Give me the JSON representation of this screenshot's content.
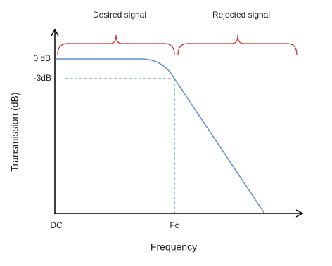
{
  "regions": {
    "desired": "Desired signal",
    "rejected": "Rejected signal"
  },
  "y_axis": {
    "title": "Transmission (dB)",
    "labels": [
      "0 dB",
      "-3dB"
    ]
  },
  "x_axis": {
    "title": "Frequency",
    "labels": [
      "DC",
      "Fc"
    ]
  }
}
